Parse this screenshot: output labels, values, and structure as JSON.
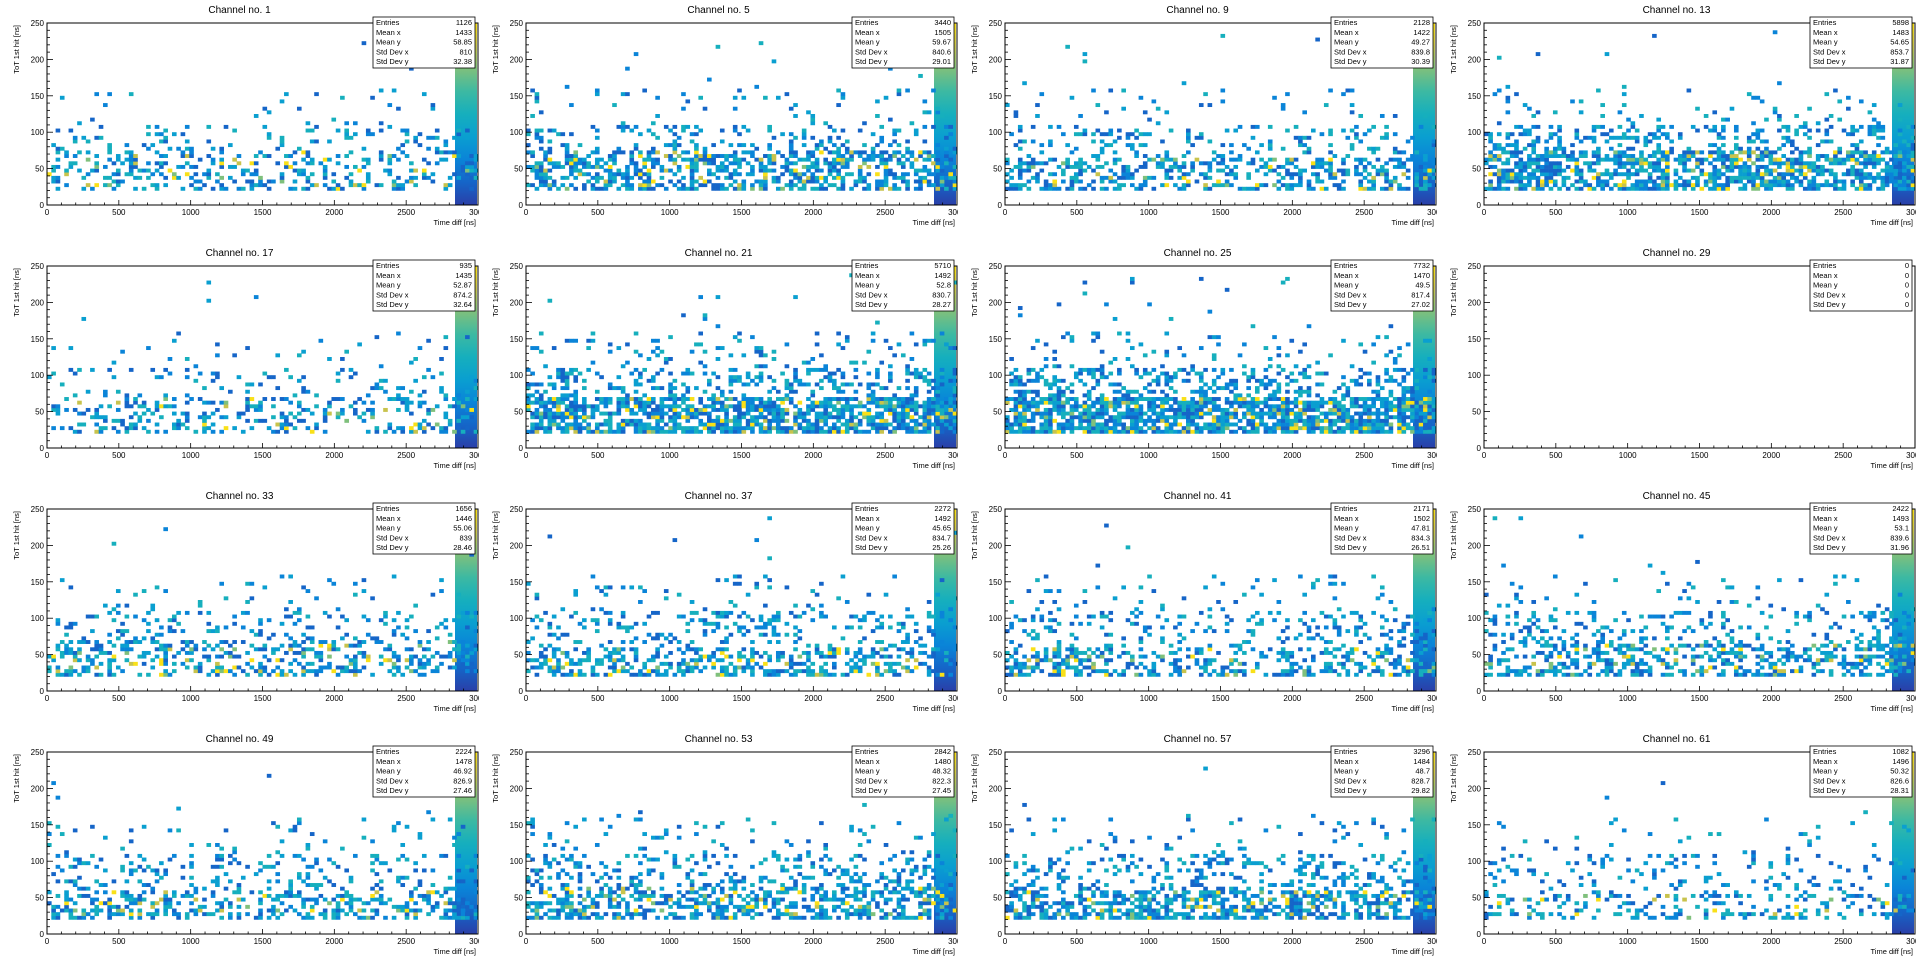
{
  "chart_data": [
    {
      "type": "heatmap",
      "title": "Channel no. 1",
      "xlabel": "Time diff [ns]",
      "ylabel": "ToT 1st hit [ns]",
      "xlim": [
        0,
        3000
      ],
      "ylim": [
        0,
        250
      ],
      "xticks": [
        0,
        500,
        1000,
        1500,
        2000,
        2500,
        3000
      ],
      "yticks": [
        0,
        50,
        100,
        150,
        200,
        250
      ],
      "stats": {
        "labels": [
          "Entries",
          "Mean x",
          "Mean y",
          "Std Dev x",
          "Std Dev y"
        ],
        "values": [
          "1126",
          "1433",
          "58.85",
          "810",
          "32.38"
        ]
      },
      "density": 0.27,
      "core_max": 75
    },
    {
      "type": "heatmap",
      "title": "Channel no. 5",
      "xlabel": "Time diff [ns]",
      "ylabel": "ToT 1st hit [ns]",
      "xlim": [
        0,
        3000
      ],
      "ylim": [
        0,
        250
      ],
      "xticks": [
        0,
        500,
        1000,
        1500,
        2000,
        2500,
        3000
      ],
      "yticks": [
        0,
        50,
        100,
        150,
        200,
        250
      ],
      "stats": {
        "labels": [
          "Entries",
          "Mean x",
          "Mean y",
          "Std Dev x",
          "Std Dev y"
        ],
        "values": [
          "3440",
          "1505",
          "59.67",
          "840.6",
          "29.01"
        ]
      },
      "density": 0.5,
      "core_max": 75
    },
    {
      "type": "heatmap",
      "title": "Channel no. 9",
      "xlabel": "Time diff [ns]",
      "ylabel": "ToT 1st hit [ns]",
      "xlim": [
        0,
        3000
      ],
      "ylim": [
        0,
        250
      ],
      "xticks": [
        0,
        500,
        1000,
        1500,
        2000,
        2500,
        3000
      ],
      "yticks": [
        0,
        50,
        100,
        150,
        200,
        250
      ],
      "stats": {
        "labels": [
          "Entries",
          "Mean x",
          "Mean y",
          "Std Dev x",
          "Std Dev y"
        ],
        "values": [
          "2128",
          "1422",
          "49.27",
          "839.8",
          "30.39"
        ]
      },
      "density": 0.42,
      "core_max": 65
    },
    {
      "type": "heatmap",
      "title": "Channel no. 13",
      "xlabel": "Time diff [ns]",
      "ylabel": "ToT 1st hit [ns]",
      "xlim": [
        0,
        3000
      ],
      "ylim": [
        0,
        250
      ],
      "xticks": [
        0,
        500,
        1000,
        1500,
        2000,
        2500,
        3000
      ],
      "yticks": [
        0,
        50,
        100,
        150,
        200,
        250
      ],
      "stats": {
        "labels": [
          "Entries",
          "Mean x",
          "Mean y",
          "Std Dev x",
          "Std Dev y"
        ],
        "values": [
          "5898",
          "1483",
          "54.65",
          "853.7",
          "31.87"
        ]
      },
      "density": 0.62,
      "core_max": 75
    },
    {
      "type": "heatmap",
      "title": "Channel no. 17",
      "xlabel": "Time diff [ns]",
      "ylabel": "ToT 1st hit [ns]",
      "xlim": [
        0,
        3000
      ],
      "ylim": [
        0,
        250
      ],
      "xticks": [
        0,
        500,
        1000,
        1500,
        2000,
        2500,
        3000
      ],
      "yticks": [
        0,
        50,
        100,
        150,
        200,
        250
      ],
      "stats": {
        "labels": [
          "Entries",
          "Mean x",
          "Mean y",
          "Std Dev x",
          "Std Dev y"
        ],
        "values": [
          "935",
          "1435",
          "52.87",
          "874.2",
          "32.64"
        ]
      },
      "density": 0.25,
      "core_max": 70
    },
    {
      "type": "heatmap",
      "title": "Channel no. 21",
      "xlabel": "Time diff [ns]",
      "ylabel": "ToT 1st hit [ns]",
      "xlim": [
        0,
        3000
      ],
      "ylim": [
        0,
        250
      ],
      "xticks": [
        0,
        500,
        1000,
        1500,
        2000,
        2500,
        3000
      ],
      "yticks": [
        0,
        50,
        100,
        150,
        200,
        250
      ],
      "stats": {
        "labels": [
          "Entries",
          "Mean x",
          "Mean y",
          "Std Dev x",
          "Std Dev y"
        ],
        "values": [
          "5710",
          "1492",
          "52.8",
          "830.7",
          "28.27"
        ]
      },
      "density": 0.68,
      "core_max": 70
    },
    {
      "type": "heatmap",
      "title": "Channel no. 25",
      "xlabel": "Time diff [ns]",
      "ylabel": "ToT 1st hit [ns]",
      "xlim": [
        0,
        3000
      ],
      "ylim": [
        0,
        250
      ],
      "xticks": [
        0,
        500,
        1000,
        1500,
        2000,
        2500,
        3000
      ],
      "yticks": [
        0,
        50,
        100,
        150,
        200,
        250
      ],
      "stats": {
        "labels": [
          "Entries",
          "Mean x",
          "Mean y",
          "Std Dev x",
          "Std Dev y"
        ],
        "values": [
          "7732",
          "1470",
          "49.5",
          "817.4",
          "27.02"
        ]
      },
      "density": 0.75,
      "core_max": 70
    },
    {
      "type": "heatmap",
      "title": "Channel no. 29",
      "xlabel": "Time diff [ns]",
      "ylabel": "ToT 1st hit [ns]",
      "xlim": [
        0,
        3000
      ],
      "ylim": [
        0,
        250
      ],
      "xticks": [
        0,
        500,
        1000,
        1500,
        2000,
        2500,
        3000
      ],
      "yticks": [
        0,
        50,
        100,
        150,
        200,
        250
      ],
      "stats": {
        "labels": [
          "Entries",
          "Mean x",
          "Mean y",
          "Std Dev x",
          "Std Dev y"
        ],
        "values": [
          "0",
          "0",
          "0",
          "0",
          "0"
        ]
      },
      "density": 0,
      "core_max": 0
    },
    {
      "type": "heatmap",
      "title": "Channel no. 33",
      "xlabel": "Time diff [ns]",
      "ylabel": "ToT 1st hit [ns]",
      "xlim": [
        0,
        3000
      ],
      "ylim": [
        0,
        250
      ],
      "xticks": [
        0,
        500,
        1000,
        1500,
        2000,
        2500,
        3000
      ],
      "yticks": [
        0,
        50,
        100,
        150,
        200,
        250
      ],
      "stats": {
        "labels": [
          "Entries",
          "Mean x",
          "Mean y",
          "Std Dev x",
          "Std Dev y"
        ],
        "values": [
          "1656",
          "1446",
          "55.06",
          "839",
          "28.46"
        ]
      },
      "density": 0.35,
      "core_max": 70
    },
    {
      "type": "heatmap",
      "title": "Channel no. 37",
      "xlabel": "Time diff [ns]",
      "ylabel": "ToT 1st hit [ns]",
      "xlim": [
        0,
        3000
      ],
      "ylim": [
        0,
        250
      ],
      "xticks": [
        0,
        500,
        1000,
        1500,
        2000,
        2500,
        3000
      ],
      "yticks": [
        0,
        50,
        100,
        150,
        200,
        250
      ],
      "stats": {
        "labels": [
          "Entries",
          "Mean x",
          "Mean y",
          "Std Dev x",
          "Std Dev y"
        ],
        "values": [
          "2272",
          "1492",
          "45.65",
          "834.7",
          "25.26"
        ]
      },
      "density": 0.42,
      "core_max": 60
    },
    {
      "type": "heatmap",
      "title": "Channel no. 41",
      "xlabel": "Time diff [ns]",
      "ylabel": "ToT 1st hit [ns]",
      "xlim": [
        0,
        3000
      ],
      "ylim": [
        0,
        250
      ],
      "xticks": [
        0,
        500,
        1000,
        1500,
        2000,
        2500,
        3000
      ],
      "yticks": [
        0,
        50,
        100,
        150,
        200,
        250
      ],
      "stats": {
        "labels": [
          "Entries",
          "Mean x",
          "Mean y",
          "Std Dev x",
          "Std Dev y"
        ],
        "values": [
          "2171",
          "1502",
          "47.81",
          "834.3",
          "26.51"
        ]
      },
      "density": 0.42,
      "core_max": 60
    },
    {
      "type": "heatmap",
      "title": "Channel no. 45",
      "xlabel": "Time diff [ns]",
      "ylabel": "ToT 1st hit [ns]",
      "xlim": [
        0,
        3000
      ],
      "ylim": [
        0,
        250
      ],
      "xticks": [
        0,
        500,
        1000,
        1500,
        2000,
        2500,
        3000
      ],
      "yticks": [
        0,
        50,
        100,
        150,
        200,
        250
      ],
      "stats": {
        "labels": [
          "Entries",
          "Mean x",
          "Mean y",
          "Std Dev x",
          "Std Dev y"
        ],
        "values": [
          "2422",
          "1493",
          "53.1",
          "839.6",
          "31.96"
        ]
      },
      "density": 0.42,
      "core_max": 65
    },
    {
      "type": "heatmap",
      "title": "Channel no. 49",
      "xlabel": "Time diff [ns]",
      "ylabel": "ToT 1st hit [ns]",
      "xlim": [
        0,
        3000
      ],
      "ylim": [
        0,
        250
      ],
      "xticks": [
        0,
        500,
        1000,
        1500,
        2000,
        2500,
        3000
      ],
      "yticks": [
        0,
        50,
        100,
        150,
        200,
        250
      ],
      "stats": {
        "labels": [
          "Entries",
          "Mean x",
          "Mean y",
          "Std Dev x",
          "Std Dev y"
        ],
        "values": [
          "2224",
          "1478",
          "46.92",
          "826.9",
          "27.46"
        ]
      },
      "density": 0.42,
      "core_max": 60
    },
    {
      "type": "heatmap",
      "title": "Channel no. 53",
      "xlabel": "Time diff [ns]",
      "ylabel": "ToT 1st hit [ns]",
      "xlim": [
        0,
        3000
      ],
      "ylim": [
        0,
        250
      ],
      "xticks": [
        0,
        500,
        1000,
        1500,
        2000,
        2500,
        3000
      ],
      "yticks": [
        0,
        50,
        100,
        150,
        200,
        250
      ],
      "stats": {
        "labels": [
          "Entries",
          "Mean x",
          "Mean y",
          "Std Dev x",
          "Std Dev y"
        ],
        "values": [
          "2842",
          "1480",
          "48.32",
          "822.3",
          "27.45"
        ]
      },
      "density": 0.5,
      "core_max": 65
    },
    {
      "type": "heatmap",
      "title": "Channel no. 57",
      "xlabel": "Time diff [ns]",
      "ylabel": "ToT 1st hit [ns]",
      "xlim": [
        0,
        3000
      ],
      "ylim": [
        0,
        250
      ],
      "xticks": [
        0,
        500,
        1000,
        1500,
        2000,
        2500,
        3000
      ],
      "yticks": [
        0,
        50,
        100,
        150,
        200,
        250
      ],
      "stats": {
        "labels": [
          "Entries",
          "Mean x",
          "Mean y",
          "Std Dev x",
          "Std Dev y"
        ],
        "values": [
          "3296",
          "1484",
          "48.7",
          "828.7",
          "29.82"
        ]
      },
      "density": 0.52,
      "core_max": 60
    },
    {
      "type": "heatmap",
      "title": "Channel no. 61",
      "xlabel": "Time diff [ns]",
      "ylabel": "ToT 1st hit [ns]",
      "xlim": [
        0,
        3000
      ],
      "ylim": [
        0,
        250
      ],
      "xticks": [
        0,
        500,
        1000,
        1500,
        2000,
        2500,
        3000
      ],
      "yticks": [
        0,
        50,
        100,
        150,
        200,
        250
      ],
      "stats": {
        "labels": [
          "Entries",
          "Mean x",
          "Mean y",
          "Std Dev x",
          "Std Dev y"
        ],
        "values": [
          "1082",
          "1496",
          "50.32",
          "826.6",
          "28.31"
        ]
      },
      "density": 0.27,
      "core_max": 55
    }
  ],
  "colors": {
    "palette": [
      "#2a3fa8",
      "#1565c8",
      "#0a84d8",
      "#0a9fd0",
      "#16afbd",
      "#3db9a2",
      "#7fc07c",
      "#c8c34c",
      "#f9e018"
    ],
    "frame": "#000000",
    "background": "#ffffff"
  }
}
